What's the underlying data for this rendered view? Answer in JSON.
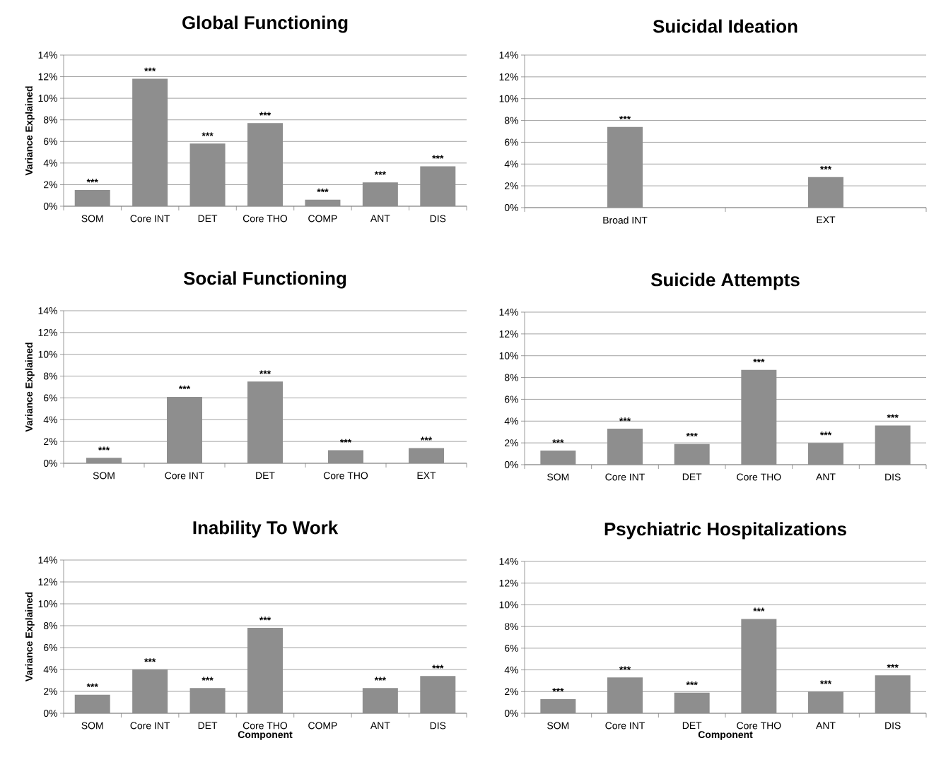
{
  "chart_data": [
    {
      "type": "bar",
      "title": "Global Functioning",
      "ylabel": "Variance Explained",
      "categories": [
        "SOM",
        "Core INT",
        "DET",
        "Core THO",
        "COMP",
        "ANT",
        "DIS"
      ],
      "values": [
        1.5,
        11.8,
        5.8,
        7.7,
        0.6,
        2.2,
        3.7
      ],
      "color": "#8e8e8e",
      "ylim": [
        0,
        14
      ],
      "yticks": [
        {
          "value": 0,
          "label": "0%"
        },
        {
          "value": 2,
          "label": "2%"
        },
        {
          "value": 4,
          "label": "4%"
        },
        {
          "value": 6,
          "label": "6%"
        },
        {
          "value": 8,
          "label": "8%"
        },
        {
          "value": 10,
          "label": "10%"
        },
        {
          "value": 12,
          "label": "12%"
        },
        {
          "value": 14,
          "label": "14%"
        }
      ],
      "grid": "y",
      "annotations": [
        {
          "text": "***",
          "x": "SOM",
          "y": 1.5
        },
        {
          "text": "***",
          "x": "Core INT",
          "y": 11.8
        },
        {
          "text": "***",
          "x": "DET",
          "y": 5.8
        },
        {
          "text": "***",
          "x": "Core THO",
          "y": 7.7
        },
        {
          "text": "***",
          "x": "COMP",
          "y": 0.6
        },
        {
          "text": "***",
          "x": "ANT",
          "y": 2.2
        },
        {
          "text": "***",
          "x": "DIS",
          "y": 3.7
        }
      ]
    },
    {
      "type": "bar",
      "title": "Suicidal Ideation",
      "categories": [
        "Broad INT",
        "EXT"
      ],
      "values": [
        7.4,
        2.8
      ],
      "color": "#8e8e8e",
      "ylim": [
        0,
        14
      ],
      "yticks": [
        {
          "value": 0,
          "label": "0%"
        },
        {
          "value": 2,
          "label": "2%"
        },
        {
          "value": 4,
          "label": "4%"
        },
        {
          "value": 6,
          "label": "6%"
        },
        {
          "value": 8,
          "label": "8%"
        },
        {
          "value": 10,
          "label": "10%"
        },
        {
          "value": 12,
          "label": "12%"
        },
        {
          "value": 14,
          "label": "14%"
        }
      ],
      "grid": "y",
      "annotations": [
        {
          "text": "***",
          "x": "Broad INT",
          "y": 7.4
        },
        {
          "text": "***",
          "x": "EXT",
          "y": 2.8
        }
      ]
    },
    {
      "type": "bar",
      "title": "Social Functioning",
      "ylabel": "Variance Explained",
      "categories": [
        "SOM",
        "Core INT",
        "DET",
        "Core THO",
        "EXT"
      ],
      "values": [
        0.5,
        6.1,
        7.5,
        1.2,
        1.4
      ],
      "color": "#8e8e8e",
      "ylim": [
        0,
        14
      ],
      "yticks": [
        {
          "value": 0,
          "label": "0%"
        },
        {
          "value": 2,
          "label": "2%"
        },
        {
          "value": 4,
          "label": "4%"
        },
        {
          "value": 6,
          "label": "6%"
        },
        {
          "value": 8,
          "label": "8%"
        },
        {
          "value": 10,
          "label": "10%"
        },
        {
          "value": 12,
          "label": "12%"
        },
        {
          "value": 14,
          "label": "14%"
        }
      ],
      "grid": "y",
      "annotations": [
        {
          "text": "***",
          "x": "SOM",
          "y": 0.5
        },
        {
          "text": "***",
          "x": "Core INT",
          "y": 6.1
        },
        {
          "text": "***",
          "x": "DET",
          "y": 7.5
        },
        {
          "text": "***",
          "x": "Core THO",
          "y": 1.2
        },
        {
          "text": "***",
          "x": "EXT",
          "y": 1.4
        }
      ]
    },
    {
      "type": "bar",
      "title": "Suicide Attempts",
      "categories": [
        "SOM",
        "Core INT",
        "DET",
        "Core THO",
        "ANT",
        "DIS"
      ],
      "values": [
        1.3,
        3.3,
        1.9,
        8.7,
        2.0,
        3.6
      ],
      "color": "#8e8e8e",
      "ylim": [
        0,
        14
      ],
      "yticks": [
        {
          "value": 0,
          "label": "0%"
        },
        {
          "value": 2,
          "label": "2%"
        },
        {
          "value": 4,
          "label": "4%"
        },
        {
          "value": 6,
          "label": "6%"
        },
        {
          "value": 8,
          "label": "8%"
        },
        {
          "value": 10,
          "label": "10%"
        },
        {
          "value": 12,
          "label": "12%"
        },
        {
          "value": 14,
          "label": "14%"
        }
      ],
      "grid": "y",
      "annotations": [
        {
          "text": "***",
          "x": "SOM",
          "y": 1.3
        },
        {
          "text": "***",
          "x": "Core INT",
          "y": 3.3
        },
        {
          "text": "***",
          "x": "DET",
          "y": 1.9
        },
        {
          "text": "***",
          "x": "Core THO",
          "y": 8.7
        },
        {
          "text": "***",
          "x": "ANT",
          "y": 2.0
        },
        {
          "text": "***",
          "x": "DIS",
          "y": 3.6
        }
      ]
    },
    {
      "type": "bar",
      "title": "Inability To Work",
      "xlabel": "Component",
      "ylabel": "Variance Explained",
      "categories": [
        "SOM",
        "Core INT",
        "DET",
        "Core THO",
        "COMP",
        "ANT",
        "DIS"
      ],
      "values": [
        1.7,
        4.0,
        2.3,
        7.8,
        null,
        2.3,
        3.4
      ],
      "color": "#8e8e8e",
      "ylim": [
        0,
        14
      ],
      "yticks": [
        {
          "value": 0,
          "label": "0%"
        },
        {
          "value": 2,
          "label": "2%"
        },
        {
          "value": 4,
          "label": "4%"
        },
        {
          "value": 6,
          "label": "6%"
        },
        {
          "value": 8,
          "label": "8%"
        },
        {
          "value": 10,
          "label": "10%"
        },
        {
          "value": 12,
          "label": "12%"
        },
        {
          "value": 14,
          "label": "14%"
        }
      ],
      "grid": "y",
      "annotations": [
        {
          "text": "***",
          "x": "SOM",
          "y": 1.7
        },
        {
          "text": "***",
          "x": "Core INT",
          "y": 4.0
        },
        {
          "text": "***",
          "x": "DET",
          "y": 2.3
        },
        {
          "text": "***",
          "x": "Core THO",
          "y": 7.8
        },
        {
          "text": "***",
          "x": "ANT",
          "y": 2.3
        },
        {
          "text": "***",
          "x": "DIS",
          "y": 3.4
        }
      ]
    },
    {
      "type": "bar",
      "title": "Psychiatric Hospitalizations",
      "xlabel": "Component",
      "categories": [
        "SOM",
        "Core INT",
        "DET",
        "Core THO",
        "ANT",
        "DIS"
      ],
      "values": [
        1.3,
        3.3,
        1.9,
        8.7,
        2.0,
        3.5
      ],
      "color": "#8e8e8e",
      "ylim": [
        0,
        14
      ],
      "yticks": [
        {
          "value": 0,
          "label": "0%"
        },
        {
          "value": 2,
          "label": "2%"
        },
        {
          "value": 4,
          "label": "4%"
        },
        {
          "value": 6,
          "label": "6%"
        },
        {
          "value": 8,
          "label": "8%"
        },
        {
          "value": 10,
          "label": "10%"
        },
        {
          "value": 12,
          "label": "12%"
        },
        {
          "value": 14,
          "label": "14%"
        }
      ],
      "grid": "y",
      "annotations": [
        {
          "text": "***",
          "x": "SOM",
          "y": 1.3
        },
        {
          "text": "***",
          "x": "Core INT",
          "y": 3.3
        },
        {
          "text": "***",
          "x": "DET",
          "y": 1.9
        },
        {
          "text": "***",
          "x": "Core THO",
          "y": 8.7
        },
        {
          "text": "***",
          "x": "ANT",
          "y": 2.0
        },
        {
          "text": "***",
          "x": "DIS",
          "y": 3.5
        }
      ]
    }
  ]
}
